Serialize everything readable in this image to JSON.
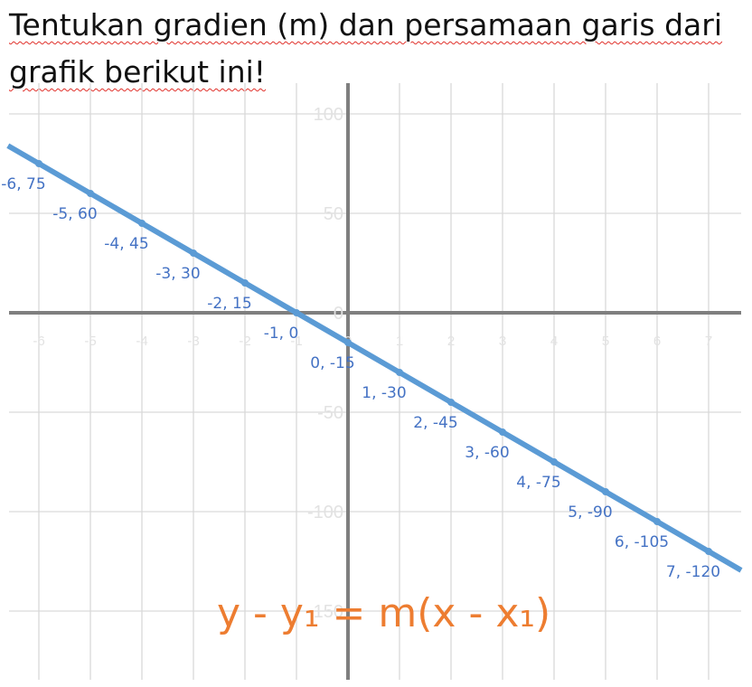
{
  "question": {
    "line1": "Tentukan gradien (m) dan persamaan garis dari",
    "line2": "grafik berikut ini!"
  },
  "formula": "y - y₁ = m(x - x₁)",
  "colors": {
    "series": "#5b9bd5",
    "data_label": "#4472c4",
    "formula": "#ed7d31",
    "axis": "#7f7f7f",
    "grid": "#d9d9d9"
  },
  "chart_data": {
    "type": "line",
    "title": "",
    "xlabel": "",
    "ylabel": "",
    "xlim": [
      -6.6,
      7.6
    ],
    "ylim": [
      -180,
      115
    ],
    "grid": true,
    "x_ticks": [
      "-6",
      "-5",
      "-4",
      "-3",
      "-2",
      "-1",
      "0",
      "1",
      "2",
      "3",
      "4",
      "5",
      "6",
      "7"
    ],
    "y_ticks": [
      "100",
      "50",
      "0",
      "-50",
      "-100",
      "-150"
    ],
    "series": [
      {
        "name": "",
        "x": [
          -6,
          -5,
          -4,
          -3,
          -2,
          -1,
          0,
          1,
          2,
          3,
          4,
          5,
          6,
          7
        ],
        "y": [
          75,
          60,
          45,
          30,
          15,
          0,
          -15,
          -30,
          -45,
          -60,
          -75,
          -90,
          -105,
          -120
        ],
        "labels": [
          "-6, 75",
          "-5, 60",
          "-4, 45",
          "-3, 30",
          "-2, 15",
          "-1, 0",
          "0, -15",
          "1, -30",
          "2, -45",
          "3, -60",
          "4, -75",
          "5, -90",
          "6, -105",
          "7, -120"
        ]
      }
    ]
  }
}
